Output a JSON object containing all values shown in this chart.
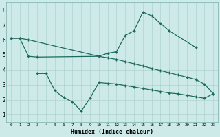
{
  "xlabel": "Humidex (Indice chaleur)",
  "bg_color": "#ceeae8",
  "line_color": "#1a6b5a",
  "grid_color": "#aed4cf",
  "xlim": [
    -0.5,
    23.5
  ],
  "ylim": [
    0.5,
    8.5
  ],
  "xticks": [
    0,
    1,
    2,
    3,
    4,
    5,
    6,
    7,
    8,
    9,
    10,
    11,
    12,
    13,
    14,
    15,
    16,
    17,
    18,
    19,
    20,
    21,
    22,
    23
  ],
  "yticks": [
    1,
    2,
    3,
    4,
    5,
    6,
    7,
    8
  ],
  "line1_x": [
    0,
    1,
    2,
    10,
    11,
    12,
    13,
    14,
    15,
    16,
    17,
    18,
    21
  ],
  "line1_y": [
    6.1,
    6.1,
    6.0,
    4.9,
    5.1,
    5.2,
    6.3,
    6.6,
    7.85,
    7.6,
    7.1,
    6.6,
    5.5
  ],
  "line2_x": [
    0,
    1,
    2,
    3,
    10,
    11,
    12,
    13,
    14,
    15,
    16,
    17,
    18,
    19,
    20,
    21,
    22,
    23
  ],
  "line2_y": [
    6.1,
    6.1,
    4.9,
    4.85,
    4.9,
    4.8,
    4.7,
    4.55,
    4.4,
    4.25,
    4.1,
    3.95,
    3.8,
    3.65,
    3.5,
    3.35,
    3.05,
    2.4
  ],
  "line3_x": [
    3,
    4,
    5,
    6,
    7,
    8,
    9,
    10,
    11,
    12,
    13,
    14,
    15,
    16,
    17,
    18,
    19,
    20,
    21,
    22,
    23
  ],
  "line3_y": [
    3.75,
    3.75,
    2.6,
    2.15,
    1.85,
    1.25,
    2.1,
    3.15,
    3.1,
    3.05,
    2.95,
    2.85,
    2.75,
    2.65,
    2.55,
    2.45,
    2.4,
    2.3,
    2.2,
    2.1,
    2.4
  ]
}
